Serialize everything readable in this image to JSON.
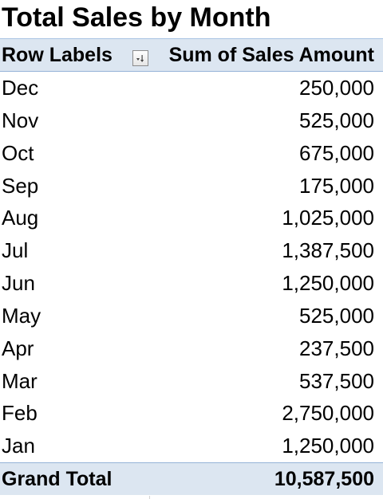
{
  "title": "Total Sales by Month",
  "pivot": {
    "row_labels_header": "Row Labels",
    "value_header": "Sum of Sales Amount",
    "rows": [
      {
        "label": "Dec",
        "value": "250,000"
      },
      {
        "label": "Nov",
        "value": "525,000"
      },
      {
        "label": "Oct",
        "value": "675,000"
      },
      {
        "label": "Sep",
        "value": "175,000"
      },
      {
        "label": "Aug",
        "value": "1,025,000"
      },
      {
        "label": "Jul",
        "value": "1,387,500"
      },
      {
        "label": "Jun",
        "value": "1,250,000"
      },
      {
        "label": "May",
        "value": "525,000"
      },
      {
        "label": "Apr",
        "value": "237,500"
      },
      {
        "label": "Mar",
        "value": "537,500"
      },
      {
        "label": "Feb",
        "value": "2,750,000"
      },
      {
        "label": "Jan",
        "value": "1,250,000"
      }
    ],
    "grand_total_label": "Grand Total",
    "grand_total_value": "10,587,500",
    "filter_icon": "sort-filter-dropdown-icon"
  },
  "colors": {
    "header_background": "#dce6f1",
    "header_border": "#95b3d7",
    "text": "#000000"
  }
}
